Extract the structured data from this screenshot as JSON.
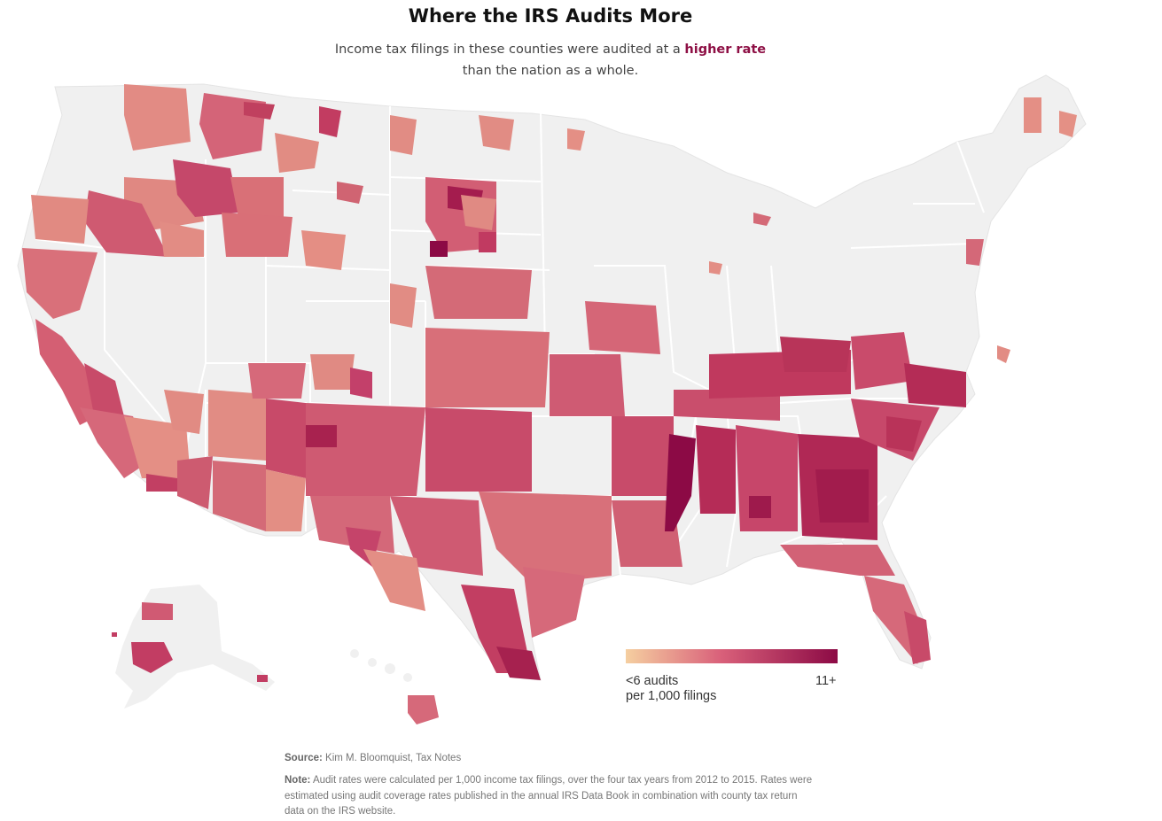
{
  "header": {
    "title": "Where the IRS Audits More",
    "subtitle_pre": "Income tax filings in these counties were audited at a ",
    "subtitle_highlight": "higher rate",
    "subtitle_post": "than the nation as a whole."
  },
  "legend": {
    "min_label_line1": "<6 audits",
    "min_label_line2": "per 1,000 filings",
    "max_label": "11+",
    "color_low": "#f5cfa0",
    "color_mid": "#d9607a",
    "color_high": "#8c0a45"
  },
  "map": {
    "land_color": "#f0f0f0",
    "border_color": "#ffffff",
    "highlight_color": "#8e1045"
  },
  "footer": {
    "source_label": "Source:",
    "source_text": "Kim M. Bloomquist, Tax Notes",
    "note_label": "Note:",
    "note_text": "Audit rates were calculated per 1,000 income tax filings, over the four tax years from 2012 to 2015. Rates were estimated using audit coverage rates published in the annual IRS Data Book in combination with county tax return data on the IRS website."
  }
}
